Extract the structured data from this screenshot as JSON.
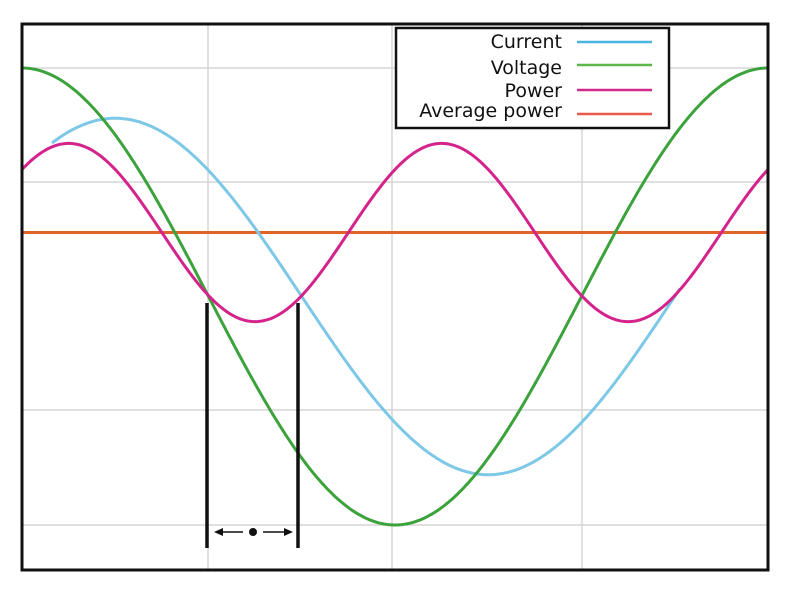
{
  "chart_data": {
    "type": "line",
    "title": "",
    "xlabel": "",
    "ylabel": "",
    "grid": true,
    "legend_position": "top-right",
    "x_range": [
      0,
      360
    ],
    "y_range": [
      -1.2,
      1.2
    ],
    "x_units": "phase (degrees, one voltage period across the frame)",
    "series": [
      {
        "name": "Current",
        "color": "#7cc8e6",
        "shape": "sinusoid",
        "amplitude": 0.78,
        "phase_lag_deg": 45,
        "peak_x": 45,
        "trough_x": 225
      },
      {
        "name": "Voltage",
        "color": "#3ca23c",
        "shape": "sinusoid",
        "amplitude": 1.0,
        "phase_lag_deg": 0,
        "peak_x": [
          0,
          360
        ],
        "trough_x": 180
      },
      {
        "name": "Power",
        "color": "#d4248c",
        "shape": "sinusoid (double frequency)",
        "offset": 0.28,
        "amplitude": 0.39,
        "peak_x": [
          22.5,
          202.5
        ],
        "trough_x": [
          112.5,
          292.5
        ]
      },
      {
        "name": "Average power",
        "color": "#e2632a",
        "shape": "constant",
        "value": 0.28
      }
    ],
    "annotations": [
      {
        "type": "interval-markers",
        "x_start": 90,
        "x_end": 135,
        "label": "double-headed arrow with center dot"
      }
    ]
  },
  "legend": {
    "items": [
      {
        "label": "Current",
        "color": "#4ab3e0"
      },
      {
        "label": "Voltage",
        "color": "#5cb848"
      },
      {
        "label": "Power",
        "color": "#d02a8f"
      },
      {
        "label": "Average power",
        "color": "#e85a4a"
      }
    ]
  },
  "colors": {
    "current": "#7cc8e6",
    "voltage": "#3ca23c",
    "power": "#d4248c",
    "average_power": "#e2632a",
    "grid": "#d6d6d6",
    "frame": "#111111"
  }
}
